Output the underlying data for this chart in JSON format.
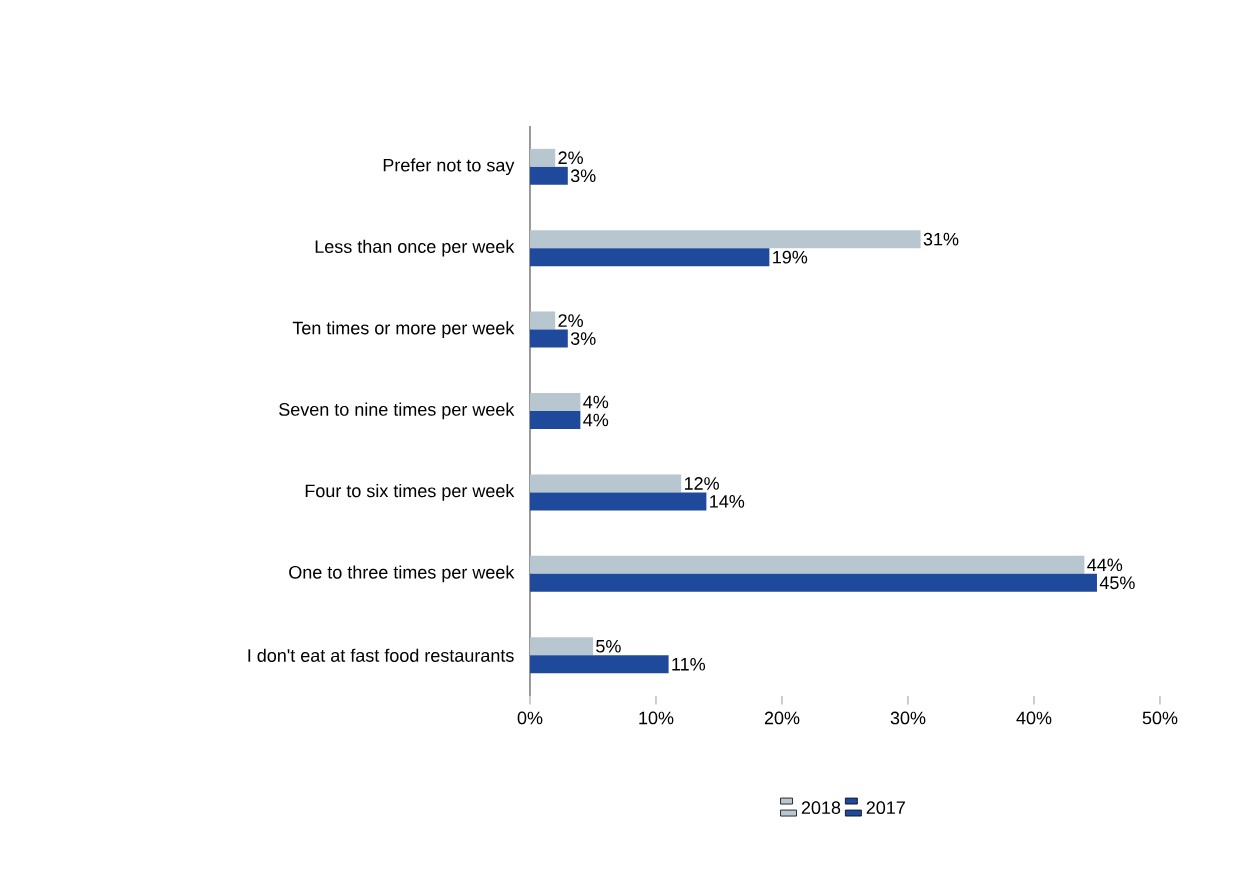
{
  "chart_data": {
    "type": "bar",
    "orientation": "horizontal",
    "categories": [
      "Prefer not to say",
      "Less than once per week",
      "Ten times or more per week",
      "Seven to nine times per week",
      "Four to six times per week",
      "One to three times per week",
      "I don't eat at fast food restaurants"
    ],
    "series": [
      {
        "name": "2018",
        "color": "#b8c6cf",
        "values": [
          2,
          31,
          2,
          4,
          12,
          44,
          5
        ],
        "value_labels": [
          "2%",
          "31%",
          "2%",
          "4%",
          "12%",
          "44%",
          "5%"
        ]
      },
      {
        "name": "2017",
        "color": "#1f4a9c",
        "values": [
          3,
          19,
          3,
          4,
          14,
          45,
          11
        ],
        "value_labels": [
          "3%",
          "19%",
          "3%",
          "4%",
          "14%",
          "45%",
          "11%"
        ]
      }
    ],
    "xlim": [
      0,
      50
    ],
    "xticks": [
      {
        "value": 0,
        "label": "0%"
      },
      {
        "value": 10,
        "label": "10%"
      },
      {
        "value": 20,
        "label": "20%"
      },
      {
        "value": 30,
        "label": "30%"
      },
      {
        "value": 40,
        "label": "40%"
      },
      {
        "value": 50,
        "label": "50%"
      }
    ],
    "legend": "bottom",
    "grid": false
  }
}
